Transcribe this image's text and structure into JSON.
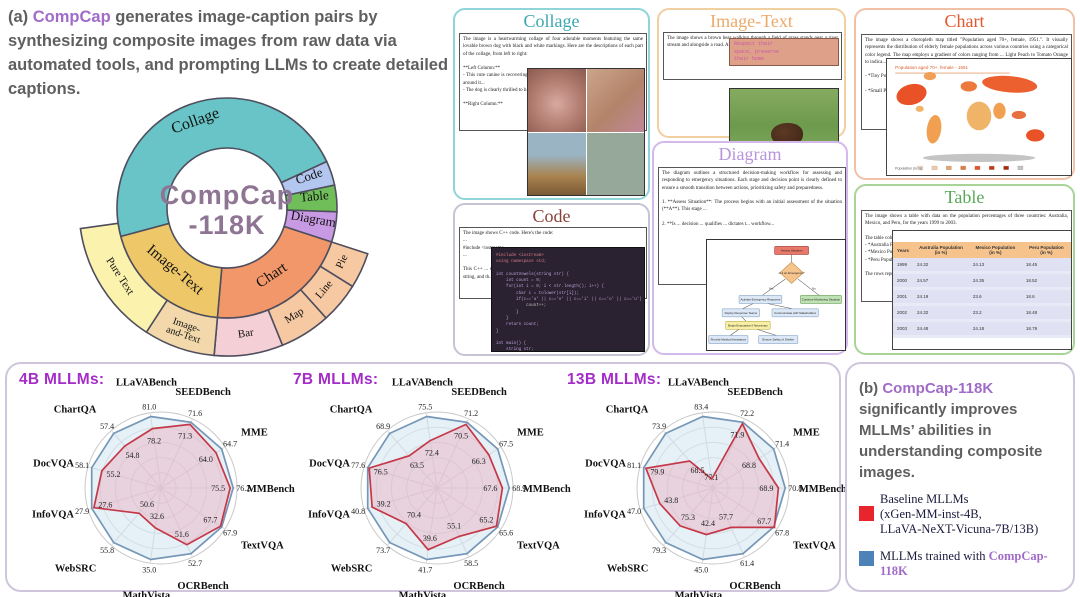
{
  "caption_a": {
    "prefix": "(a) ",
    "brand": "CompCap",
    "rest": " generates image-caption pairs by synthesizing composite images from raw data via automated tools, and prompting LLMs to create detailed captions."
  },
  "caption_b": {
    "prefix": "(b) ",
    "brand": "CompCap-118K",
    "rest": " significantly improves MLLMs’ abilities in understanding composite images."
  },
  "legend": {
    "baseline": {
      "color": "#e8242c",
      "lines": [
        "Baseline MLLMs",
        "(xGen-MM-inst-4B,",
        "LLaVA-NeXT-Vicuna-7B/13B)"
      ]
    },
    "trained": {
      "color": "#4d82b8",
      "text_prefix": "MLLMs trained with ",
      "brand": "CompCap-118K"
    }
  },
  "cards": {
    "collage": {
      "title": "Collage",
      "title_color": "#3aa8b0",
      "border_color": "#8ed4d8",
      "body": "The image is a heartwarming collage of four adorable moments featuring the same lovable brown dog with black and white markings. Here are the descriptions of each part of the collage, from left to right:\n\n**Left Column:**\n- This cute canine is recovering, sitting comfortably on tiled ki... large mesh cone collar around it...\n- The dog is clearly thrilled to b... sights and enjoying the motion... seat.\n\n**Right Column:**"
    },
    "image_text": {
      "title": "Image-Text",
      "title_color": "#eda968",
      "border_color": "#f0cfa0",
      "body": "The image shows a brown bear walking through a field of grass stands near a river stream and alongside a road. Above the image, there is text ... preserve their home.\"",
      "overlay_lines": [
        "Respect their",
        "space, preserve",
        "their home"
      ]
    },
    "chart": {
      "title": "Chart",
      "title_color": "#e2572c",
      "border_color": "#f2c0a6",
      "body": "The image shows a choropleth map titled \"Population aged 70+, female, 1951.\". It visually represents the distribution of elderly female populations across various countries using a categorical color legend. The map employs a gradient of colors ranging from ... Light Peach to Tomato Orange to indica...\n\n- *Tiny Popula... Mauritania, Pak... Venezuela, and ... proportion of eld...\n\n- *Small Popula... Zambia, Egyp... Ethiopia, and ... females compa...",
      "map_title": "Population aged 70+, female - 1951"
    },
    "code": {
      "title": "Code",
      "title_color": "#8a4038",
      "border_color": "#c4c4d4",
      "body": "The image shows C++ code. Here's the code:\n...\n#include <iostream>\n...\n\nThis C++ ... string. The ... through each ... the function ... 'o', or 'u'), th... the user to ... string, and th...",
      "code_lines": [
        "#include <iostream>",
        "using namespace std;",
        "",
        "int countVowels(string str) {",
        "    int count = 0;",
        "    for(int i = 0; i < str.length(); i++) {",
        "        char c = tolower(str[i]);",
        "        if(c=='a' || c=='e' || c=='i' || c=='o' || c=='u') {",
        "            count++;",
        "        }",
        "    }",
        "    return count;",
        "}",
        "",
        "int main() {",
        "    string str;",
        "    cout << \"Enter a string: \";",
        "    getline(cin, str);",
        "    cout << \"Number of vowels: \" << countVowels(str);",
        "    return 0;",
        "}"
      ]
    },
    "diagram": {
      "title": "Diagram",
      "title_color": "#b894dc",
      "border_color": "#d4b8ec",
      "body": "The diagram outlines a structured decision-making workflow for assessing and responding to emergency situations. Each stage and decision point is clearly defined to ensure a smooth transition between actions, prioritizing safety and preparedness.\n\n1. **Assess Situation**: The process begins with an initial assessment of the situation (**A**). This stage ...\n\n2. **Is ... decision ... qualifies ... dictates t... workflow...",
      "nodes": {
        "assess": "Assess Situation",
        "decision": "Is it an Emergency?",
        "yes": "Yes",
        "no": "No",
        "activate": "Activate Emergency Response",
        "monitor": "Continue Monitoring Situation",
        "deploy": "Deploy Response Teams",
        "communicate": "Communicate with Stakeholders",
        "evacuate": "Begin Evacuation if Necessary",
        "medical": "Provide Medical Assistance",
        "shelter": "Ensure Safety of Shelter"
      }
    },
    "table": {
      "title": "Table",
      "title_color": "#58a858",
      "border_color": "#a8d498",
      "body": "The image shows a table with data on the population percentages of three countries: Australia, Mexico, and Peru, for the years 1999 to 2003.\n\nThe table columns are ...\n- *Australia Population ... Australia for each yea...\n- *Mexico Population (in ... Mexico for each year\n- *Peru Population (in %... for each year\n\nThe rows represent the ... percentages for each co...",
      "mini": {
        "headers": [
          "Years",
          "Australia Population (in %)",
          "Mexico Population (in %)",
          "Peru Population (in %)"
        ],
        "rows": [
          [
            "1999",
            "24.32",
            "24.13",
            "18.45"
          ],
          [
            "2000",
            "24.57",
            "24.35",
            "18.52"
          ],
          [
            "2001",
            "24.19",
            "23.6",
            "18.6"
          ],
          [
            "2002",
            "24.32",
            "23.2",
            "18.48"
          ],
          [
            "2003",
            "24.48",
            "24.18",
            "18.79"
          ]
        ]
      }
    }
  },
  "chart_data": [
    {
      "type": "pie",
      "title": "CompCap-118K category distribution",
      "center_lines": [
        "CompCap",
        "-118K"
      ],
      "center_color": "#8d7593",
      "inner_segments": [
        {
          "label": "Collage",
          "color": "#68c4c6",
          "a0": 255,
          "a1": 425,
          "lr": 88,
          "fs": 16,
          "rot": "tangent"
        },
        {
          "label": "Code",
          "color": "#b3c6ef",
          "a0": 65,
          "a1": 78,
          "lr": 88,
          "fs": 13,
          "rot": "radial"
        },
        {
          "label": "Table",
          "color": "#6fbe59",
          "a0": 78,
          "a1": 92,
          "lr": 88,
          "fs": 13,
          "rot": "radial"
        },
        {
          "label": "Diagram",
          "color": "#c99ae4",
          "a0": 92,
          "a1": 108,
          "lr": 87,
          "fs": 13,
          "rot": "radial"
        },
        {
          "label": "Chart",
          "color": "#f2976a",
          "a0": 108,
          "a1": 185,
          "lr": 85,
          "fs": 15,
          "rot": "tangent"
        },
        {
          "label": "Image-Text",
          "color": "#eec768",
          "a0": 185,
          "a1": 255,
          "lr": 85,
          "fs": 15,
          "rot": "tangent"
        }
      ],
      "outer_segments": [
        {
          "label": "Pie",
          "color": "#f7c9a2",
          "a0": 108,
          "a1": 122,
          "lr": 130,
          "fs": 11,
          "rot": "tangent"
        },
        {
          "label": "Line",
          "color": "#f7c9a2",
          "a0": 122,
          "a1": 138,
          "lr": 130,
          "fs": 11,
          "rot": "tangent"
        },
        {
          "label": "Map",
          "color": "#f7c9a2",
          "a0": 138,
          "a1": 158,
          "lr": 130,
          "fs": 11,
          "rot": "tangent"
        },
        {
          "label": "Bar",
          "color": "#f4d0d6",
          "a0": 158,
          "a1": 185,
          "lr": 130,
          "fs": 11,
          "rot": "tangent"
        },
        {
          "label": "Image-\nand-Text",
          "color": "#f2d8ab",
          "a0": 185,
          "a1": 213,
          "lr": 130,
          "fs": 10,
          "rot": "tangent"
        },
        {
          "label": "Pure Text",
          "color": "#fbf3ad",
          "a0": 213,
          "a1": 262,
          "lr": 130,
          "fs": 11,
          "rot": "tangent"
        }
      ]
    },
    {
      "type": "radar",
      "title": "4B MLLMs:",
      "categories": [
        "LLaVABench",
        "SEEDBench",
        "MME",
        "MMBench",
        "TextVQA",
        "OCRBench",
        "MathVista",
        "WebSRC",
        "InfoVQA",
        "DocVQA",
        "ChartQA"
      ],
      "series": [
        {
          "name": "MLLMs trained with CompCap-118K",
          "color": "#7596b6",
          "fill": "rgba(190,215,235,0.38)",
          "radius": 0.95,
          "values": [
            81.0,
            71.6,
            64.7,
            76.2,
            67.9,
            52.7,
            35.0,
            55.8,
            27.9,
            58.1,
            57.4
          ]
        },
        {
          "name": "Baseline MLLMs",
          "color": "#c43848",
          "fill": "rgba(235,170,185,0.42)",
          "radii": [
            0.79,
            0.92,
            0.86,
            0.91,
            0.93,
            0.82,
            0.53,
            0.44,
            0.92,
            0.81,
            0.73
          ],
          "values": [
            78.2,
            71.3,
            64.0,
            75.5,
            67.7,
            51.6,
            32.6,
            50.6,
            27.6,
            55.2,
            54.8
          ]
        }
      ]
    },
    {
      "type": "radar",
      "title": "7B MLLMs:",
      "categories": [
        "LLaVABench",
        "SEEDBench",
        "MME",
        "MMBench",
        "TextVQA",
        "OCRBench",
        "MathVista",
        "WebSRC",
        "InfoVQA",
        "DocVQA",
        "ChartQA"
      ],
      "series": [
        {
          "name": "MLLMs trained with CompCap-118K",
          "color": "#7596b6",
          "fill": "rgba(190,215,235,0.38)",
          "radius": 0.95,
          "values": [
            75.5,
            71.2,
            67.5,
            68.9,
            65.6,
            58.5,
            41.7,
            73.7,
            40.8,
            77.6,
            68.9
          ]
        },
        {
          "name": "Baseline MLLMs",
          "color": "#c43848",
          "fill": "rgba(235,170,185,0.42)",
          "radii": [
            0.63,
            0.92,
            0.81,
            0.86,
            0.93,
            0.7,
            0.82,
            0.62,
            0.89,
            0.93,
            0.56
          ],
          "values": [
            72.4,
            70.5,
            66.3,
            67.6,
            65.2,
            55.1,
            39.6,
            70.4,
            39.2,
            76.5,
            63.5
          ]
        }
      ]
    },
    {
      "type": "radar",
      "title": "13B MLLMs:",
      "categories": [
        "LLaVABench",
        "SEEDBench",
        "MME",
        "MMBench",
        "TextVQA",
        "OCRBench",
        "MathVista",
        "WebSRC",
        "InfoVQA",
        "DocVQA",
        "ChartQA"
      ],
      "series": [
        {
          "name": "MLLMs trained with CompCap-118K",
          "color": "#7596b6",
          "fill": "rgba(190,215,235,0.38)",
          "radius": 0.95,
          "values": [
            83.4,
            72.2,
            71.4,
            70.8,
            67.8,
            61.4,
            45.0,
            79.3,
            47.0,
            81.1,
            73.9
          ]
        },
        {
          "name": "Baseline MLLMs",
          "color": "#c43848",
          "fill": "rgba(235,170,185,0.42)",
          "radii": [
            0.12,
            0.93,
            0.72,
            0.86,
            0.96,
            0.57,
            0.62,
            0.66,
            0.73,
            0.92,
            0.47
          ],
          "values": [
            77.1,
            71.9,
            68.8,
            68.9,
            67.7,
            57.7,
            42.4,
            75.3,
            43.8,
            79.9,
            68.5
          ]
        }
      ]
    }
  ]
}
